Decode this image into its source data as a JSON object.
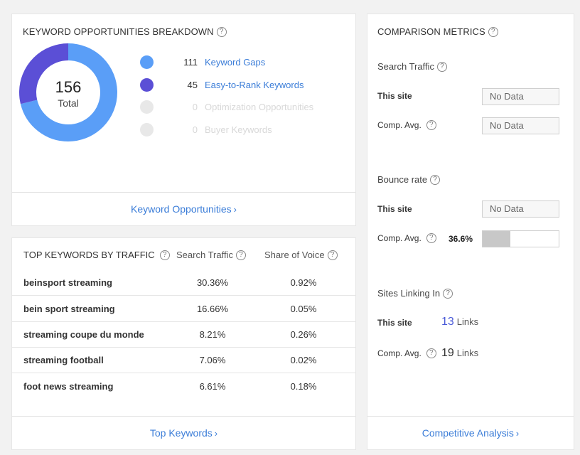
{
  "breakdown": {
    "title": "KEYWORD OPPORTUNITIES BREAKDOWN",
    "total": "156",
    "total_label": "Total",
    "items": [
      {
        "count": "111",
        "label": "Keyword Gaps",
        "color": "#5a9ef7",
        "value": 111
      },
      {
        "count": "45",
        "label": "Easy-to-Rank Keywords",
        "color": "#5b4fd6",
        "value": 45
      },
      {
        "count": "0",
        "label": "Optimization Opportunities",
        "color": "#e8e8e8",
        "value": 0
      },
      {
        "count": "0",
        "label": "Buyer Keywords",
        "color": "#e8e8e8",
        "value": 0
      }
    ],
    "footer_link": "Keyword Opportunities"
  },
  "top_keywords": {
    "title": "TOP KEYWORDS BY TRAFFIC",
    "col_traffic": "Search Traffic",
    "col_share": "Share of Voice",
    "rows": [
      {
        "keyword": "beinsport streaming",
        "traffic": "30.36%",
        "share": "0.92%"
      },
      {
        "keyword": "bein sport streaming",
        "traffic": "16.66%",
        "share": "0.05%"
      },
      {
        "keyword": "streaming coupe du monde",
        "traffic": "8.21%",
        "share": "0.26%"
      },
      {
        "keyword": "streaming football",
        "traffic": "7.06%",
        "share": "0.02%"
      },
      {
        "keyword": "foot news streaming",
        "traffic": "6.61%",
        "share": "0.18%"
      }
    ],
    "footer_link": "Top Keywords"
  },
  "comparison": {
    "title": "COMPARISON METRICS",
    "search_traffic": {
      "label": "Search Traffic",
      "this_site_label": "This site",
      "this_site_value": "No Data",
      "comp_label": "Comp. Avg.",
      "comp_value": "No Data"
    },
    "bounce_rate": {
      "label": "Bounce rate",
      "this_site_label": "This site",
      "this_site_value": "No Data",
      "comp_label": "Comp. Avg.",
      "comp_value": "36.6%",
      "comp_fraction": 0.366
    },
    "sites_linking": {
      "label": "Sites Linking In",
      "this_site_label": "This site",
      "this_site_value": "13",
      "comp_label": "Comp. Avg.",
      "comp_value": "19",
      "unit": "Links"
    },
    "footer_link": "Competitive Analysis"
  }
}
